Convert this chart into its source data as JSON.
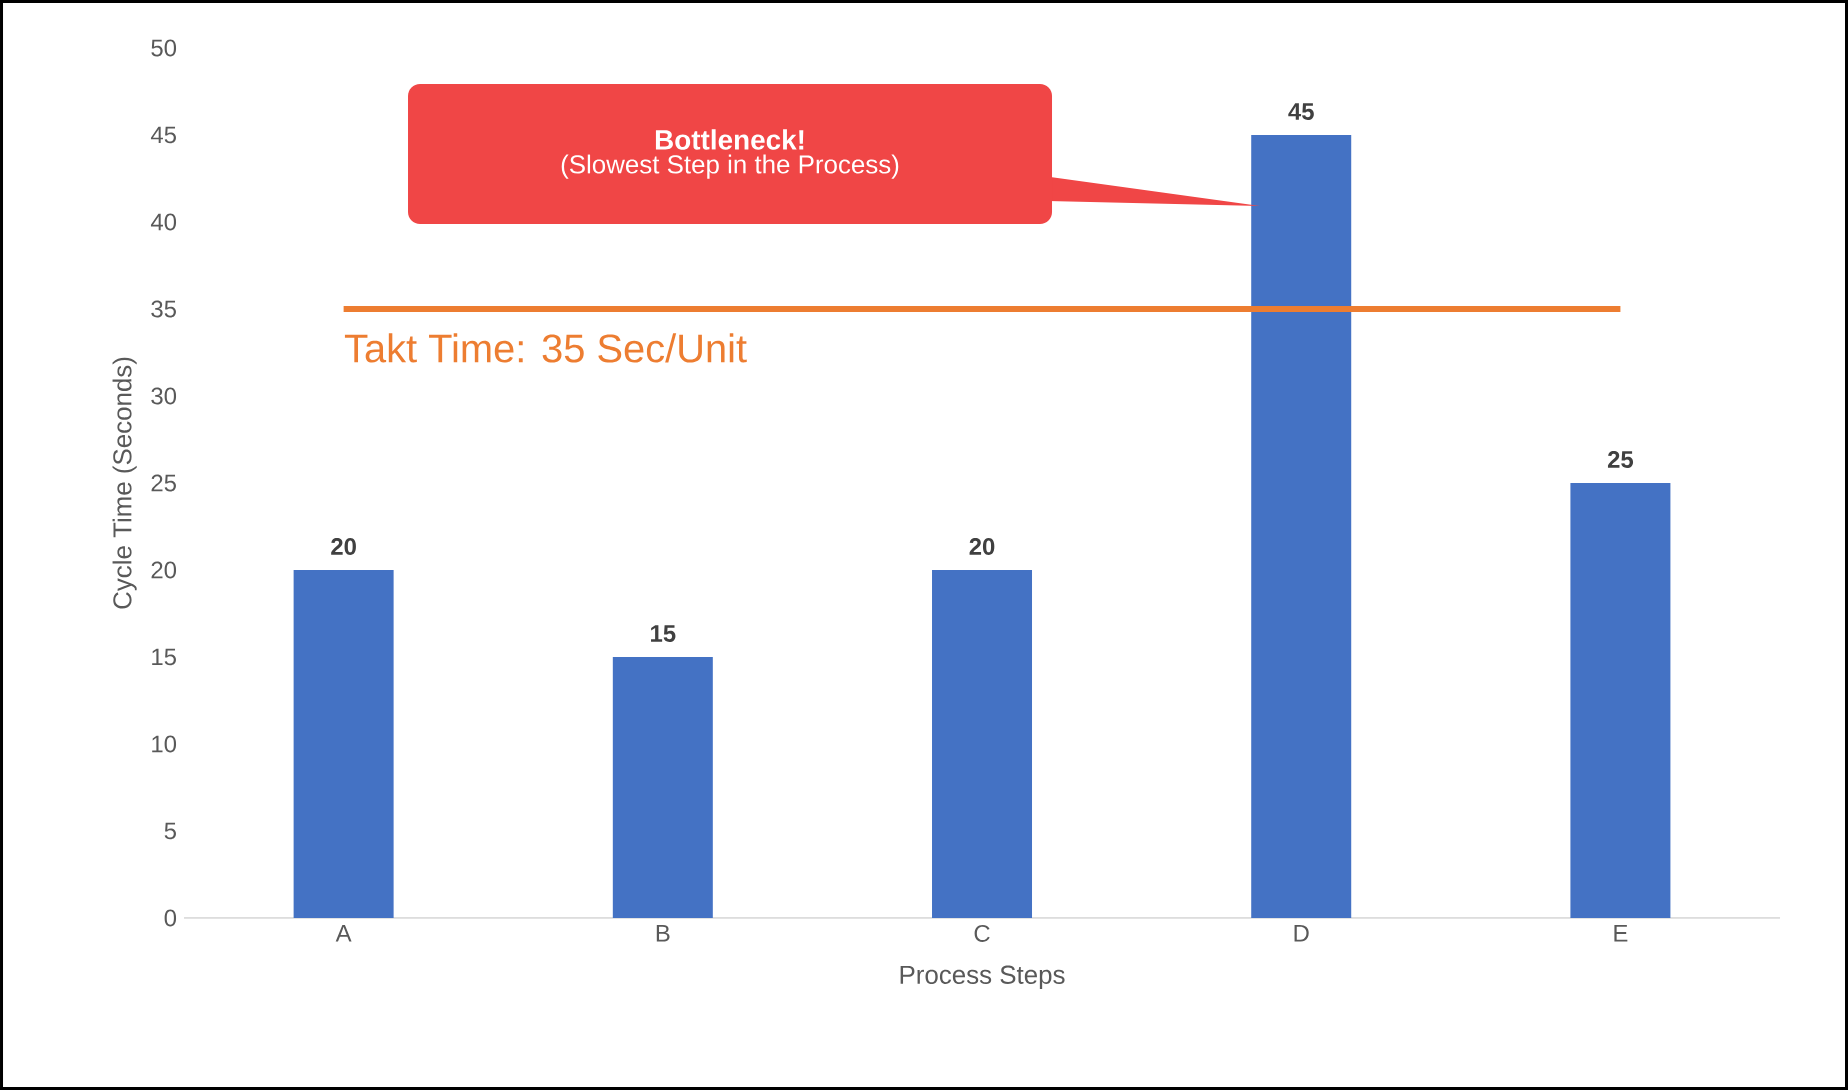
{
  "chart_data": {
    "type": "bar",
    "xlabel": "Process Steps",
    "ylabel": "Cycle Time (Seconds)",
    "categories": [
      "A",
      "B",
      "C",
      "D",
      "E"
    ],
    "values": [
      20,
      15,
      20,
      45,
      25
    ],
    "color": "#4472c4",
    "ylim": [
      0,
      50
    ],
    "yticks": [
      0,
      5,
      10,
      15,
      20,
      25,
      30,
      35,
      40,
      45,
      50
    ],
    "data_labels": true,
    "grid": false,
    "ref_lines": [
      {
        "axis": "y",
        "value": 35,
        "label": "Takt Time: 35 Sec/Unit",
        "color": "#ed7d31"
      }
    ],
    "annotations": [
      "Bottleneck!",
      "(Slowest Step in the Process)"
    ]
  }
}
